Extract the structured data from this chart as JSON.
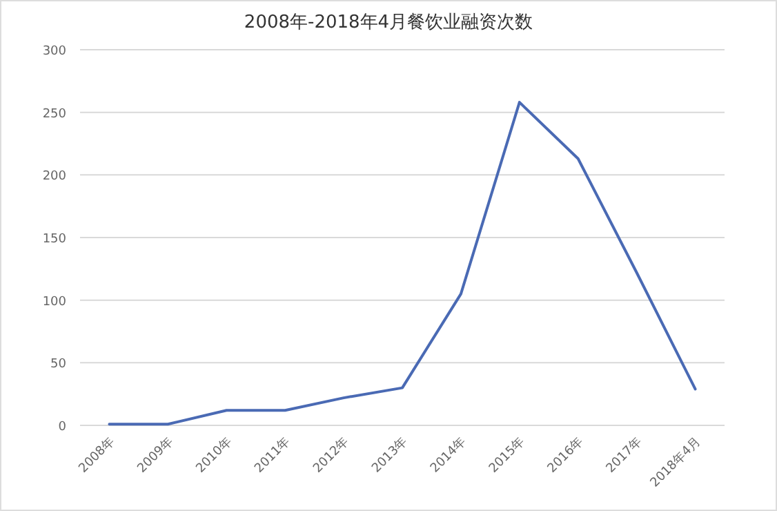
{
  "chart_data": {
    "type": "line",
    "title": "2008年-2018年4月餐饮业融资次数",
    "categories": [
      "2008年",
      "2009年",
      "2010年",
      "2011年",
      "2012年",
      "2013年",
      "2014年",
      "2015年",
      "2016年",
      "2017年",
      "2018年4月"
    ],
    "series": [
      {
        "color": "#4a6ab4",
        "values": [
          1,
          1,
          12,
          12,
          22,
          30,
          105,
          258,
          213,
          122,
          29
        ]
      }
    ],
    "ylim": [
      0,
      300
    ],
    "yticks": [
      0,
      50,
      100,
      150,
      200,
      250,
      300
    ],
    "grid": "y",
    "marker": "none",
    "line_style": "solid"
  }
}
